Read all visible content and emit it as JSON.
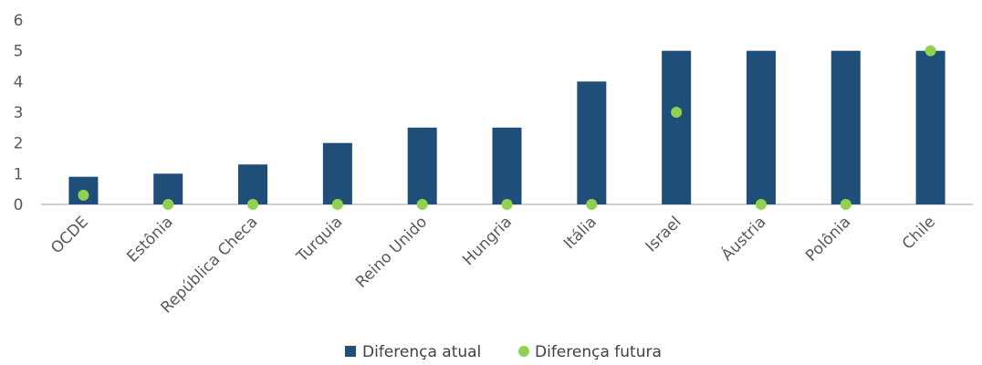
{
  "chart_data": {
    "type": "bar",
    "title": "",
    "xlabel": "",
    "ylabel": "",
    "ylim": [
      0,
      6
    ],
    "yticks": [
      0,
      1,
      2,
      3,
      4,
      5,
      6
    ],
    "grid": false,
    "legend_position": "bottom",
    "categories": [
      "OCDE",
      "Estônia",
      "República Checa",
      "Turquia",
      "Reino Unido",
      "Hungria",
      "Itália",
      "Israel",
      "Áustria",
      "Polônia",
      "Chile"
    ],
    "series": [
      {
        "name": "Diferença atual",
        "type": "bar",
        "color": "#1f4e79",
        "values": [
          0.9,
          1.0,
          1.3,
          2.0,
          2.5,
          2.5,
          4.0,
          5.0,
          5.0,
          5.0,
          5.0
        ]
      },
      {
        "name": "Diferença futura",
        "type": "scatter",
        "color": "#92d050",
        "values": [
          0.3,
          0,
          0,
          0,
          0,
          0,
          0,
          3.0,
          0,
          0,
          5.0
        ]
      }
    ]
  }
}
